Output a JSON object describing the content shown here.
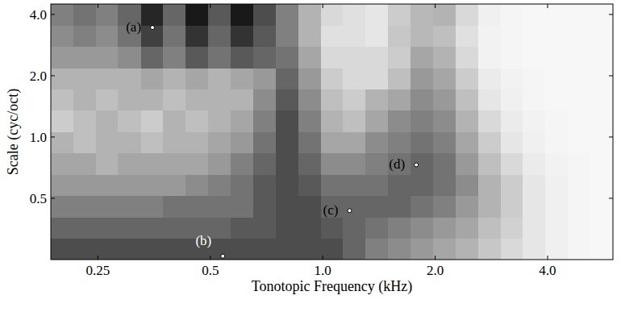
{
  "chart_data": {
    "type": "heatmap",
    "x_label": "Tonotopic Frequency (kHz)",
    "y_label": "Scale (cyc/oct)",
    "log": true,
    "xlim": [
      0.187,
      5.984
    ],
    "ylim": [
      0.25,
      4.5
    ],
    "xticks": [
      0.25,
      0.5,
      {
        "value": 1,
        "label": "1.0"
      },
      {
        "value": 2,
        "label": "2.0"
      },
      {
        "value": 4,
        "label": "4.0"
      }
    ],
    "yticks": [
      0.5,
      {
        "value": 1,
        "label": "1.0"
      },
      {
        "value": 2,
        "label": "2.0"
      },
      {
        "value": 4,
        "label": "4.0"
      }
    ],
    "zlim": [
      0,
      1
    ],
    "x_edges": [
      0.187,
      0.215,
      0.247,
      0.283,
      0.326,
      0.374,
      0.43,
      0.494,
      0.567,
      0.651,
      0.748,
      0.859,
      0.987,
      1.134,
      1.303,
      1.496,
      1.719,
      1.974,
      2.268,
      2.605,
      2.992,
      3.437,
      3.948,
      4.535,
      5.209,
      5.984
    ],
    "y_edges": [
      0.25,
      0.318,
      0.405,
      0.515,
      0.656,
      0.834,
      1.062,
      1.351,
      1.719,
      2.188,
      2.784,
      3.543,
      4.5
    ],
    "cells": [
      [
        0.7,
        0.7,
        0.7,
        0.7,
        0.7,
        0.7,
        0.7,
        0.7,
        0.7,
        0.7,
        0.7,
        0.7,
        0.7,
        0.6,
        0.5,
        0.45,
        0.4,
        0.35,
        0.3,
        0.22,
        0.15,
        0.1,
        0.06,
        0.04,
        0.03
      ],
      [
        0.6,
        0.6,
        0.6,
        0.6,
        0.6,
        0.6,
        0.6,
        0.6,
        0.65,
        0.65,
        0.7,
        0.7,
        0.65,
        0.6,
        0.55,
        0.5,
        0.45,
        0.4,
        0.35,
        0.25,
        0.18,
        0.1,
        0.06,
        0.04,
        0.03
      ],
      [
        0.5,
        0.5,
        0.5,
        0.5,
        0.5,
        0.55,
        0.55,
        0.55,
        0.55,
        0.65,
        0.7,
        0.7,
        0.6,
        0.6,
        0.6,
        0.6,
        0.55,
        0.5,
        0.4,
        0.3,
        0.2,
        0.1,
        0.06,
        0.04,
        0.03
      ],
      [
        0.4,
        0.4,
        0.4,
        0.4,
        0.4,
        0.4,
        0.45,
        0.5,
        0.55,
        0.65,
        0.7,
        0.65,
        0.55,
        0.55,
        0.55,
        0.6,
        0.6,
        0.55,
        0.45,
        0.3,
        0.2,
        0.1,
        0.06,
        0.04,
        0.03
      ],
      [
        0.35,
        0.35,
        0.3,
        0.35,
        0.35,
        0.35,
        0.35,
        0.4,
        0.5,
        0.6,
        0.7,
        0.6,
        0.45,
        0.45,
        0.5,
        0.55,
        0.6,
        0.55,
        0.4,
        0.25,
        0.15,
        0.08,
        0.05,
        0.04,
        0.03
      ],
      [
        0.3,
        0.25,
        0.3,
        0.3,
        0.25,
        0.3,
        0.3,
        0.35,
        0.4,
        0.55,
        0.7,
        0.55,
        0.35,
        0.35,
        0.45,
        0.5,
        0.55,
        0.5,
        0.35,
        0.2,
        0.1,
        0.06,
        0.04,
        0.03,
        0.03
      ],
      [
        0.2,
        0.25,
        0.3,
        0.25,
        0.2,
        0.3,
        0.25,
        0.3,
        0.35,
        0.5,
        0.7,
        0.5,
        0.3,
        0.25,
        0.35,
        0.45,
        0.5,
        0.45,
        0.3,
        0.15,
        0.08,
        0.05,
        0.04,
        0.03,
        0.03
      ],
      [
        0.25,
        0.3,
        0.25,
        0.3,
        0.3,
        0.25,
        0.3,
        0.3,
        0.3,
        0.45,
        0.65,
        0.45,
        0.25,
        0.2,
        0.3,
        0.35,
        0.45,
        0.4,
        0.25,
        0.1,
        0.06,
        0.04,
        0.03,
        0.03,
        0.03
      ],
      [
        0.3,
        0.3,
        0.3,
        0.3,
        0.35,
        0.3,
        0.35,
        0.3,
        0.35,
        0.4,
        0.6,
        0.4,
        0.2,
        0.15,
        0.15,
        0.25,
        0.4,
        0.35,
        0.2,
        0.08,
        0.05,
        0.04,
        0.03,
        0.03,
        0.03
      ],
      [
        0.4,
        0.4,
        0.4,
        0.45,
        0.6,
        0.5,
        0.65,
        0.55,
        0.65,
        0.6,
        0.55,
        0.35,
        0.15,
        0.15,
        0.15,
        0.2,
        0.35,
        0.3,
        0.15,
        0.05,
        0.04,
        0.03,
        0.03,
        0.03,
        0.03
      ],
      [
        0.45,
        0.5,
        0.45,
        0.55,
        0.75,
        0.55,
        0.8,
        0.6,
        0.8,
        0.65,
        0.5,
        0.3,
        0.12,
        0.12,
        0.1,
        0.22,
        0.28,
        0.25,
        0.12,
        0.05,
        0.04,
        0.03,
        0.03,
        0.03,
        0.03
      ],
      [
        0.5,
        0.55,
        0.5,
        0.6,
        0.85,
        0.6,
        0.9,
        0.65,
        0.9,
        0.7,
        0.5,
        0.3,
        0.15,
        0.12,
        0.1,
        0.2,
        0.28,
        0.3,
        0.15,
        0.06,
        0.04,
        0.03,
        0.03,
        0.03,
        0.03
      ]
    ],
    "annotations": [
      {
        "text": "(a)",
        "x": 0.35,
        "y": 3.45,
        "color": "#000000"
      },
      {
        "text": "(b)",
        "x": 0.54,
        "y": 0.26,
        "color": "#ffffff"
      },
      {
        "text": "(c)",
        "x": 1.18,
        "y": 0.435,
        "color": "#000000"
      },
      {
        "text": "(d)",
        "x": 1.78,
        "y": 0.73,
        "color": "#000000"
      }
    ]
  }
}
